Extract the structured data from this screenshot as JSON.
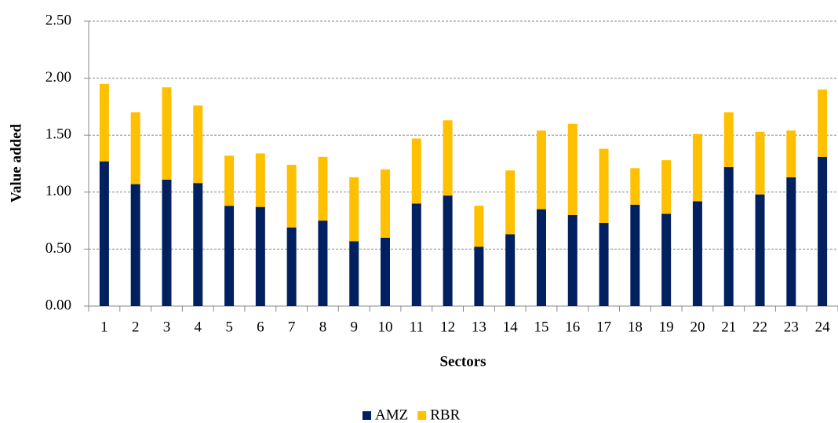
{
  "chart_data": {
    "type": "stacked_bar",
    "x_label": "Sectors",
    "y_label": "Value added",
    "categories": [
      "1",
      "2",
      "3",
      "4",
      "5",
      "6",
      "7",
      "8",
      "9",
      "10",
      "11",
      "12",
      "13",
      "14",
      "15",
      "16",
      "17",
      "18",
      "19",
      "20",
      "21",
      "22",
      "23",
      "24"
    ],
    "series": [
      {
        "name": "AMZ",
        "color": "#002060",
        "values": [
          1.27,
          1.07,
          1.11,
          1.08,
          0.88,
          0.87,
          0.69,
          0.75,
          0.57,
          0.6,
          0.9,
          0.97,
          0.52,
          0.63,
          0.85,
          0.8,
          0.73,
          0.89,
          0.81,
          0.92,
          1.22,
          0.98,
          1.13,
          1.31
        ]
      },
      {
        "name": "RBR",
        "color": "#ffc000",
        "values": [
          0.68,
          0.63,
          0.81,
          0.68,
          0.44,
          0.47,
          0.55,
          0.56,
          0.56,
          0.6,
          0.57,
          0.66,
          0.36,
          0.56,
          0.69,
          0.8,
          0.65,
          0.32,
          0.47,
          0.59,
          0.48,
          0.55,
          0.41,
          0.59
        ]
      }
    ],
    "ylim": [
      0,
      2.5
    ],
    "yticks": [
      {
        "value": 0,
        "label": "0.00"
      },
      {
        "value": 0.5,
        "label": "0.50"
      },
      {
        "value": 1,
        "label": "1.00"
      },
      {
        "value": 1.5,
        "label": "1.50"
      },
      {
        "value": 2,
        "label": "2.00"
      },
      {
        "value": 2.5,
        "label": "2.50"
      }
    ],
    "grid": true,
    "legend": "bottom"
  }
}
